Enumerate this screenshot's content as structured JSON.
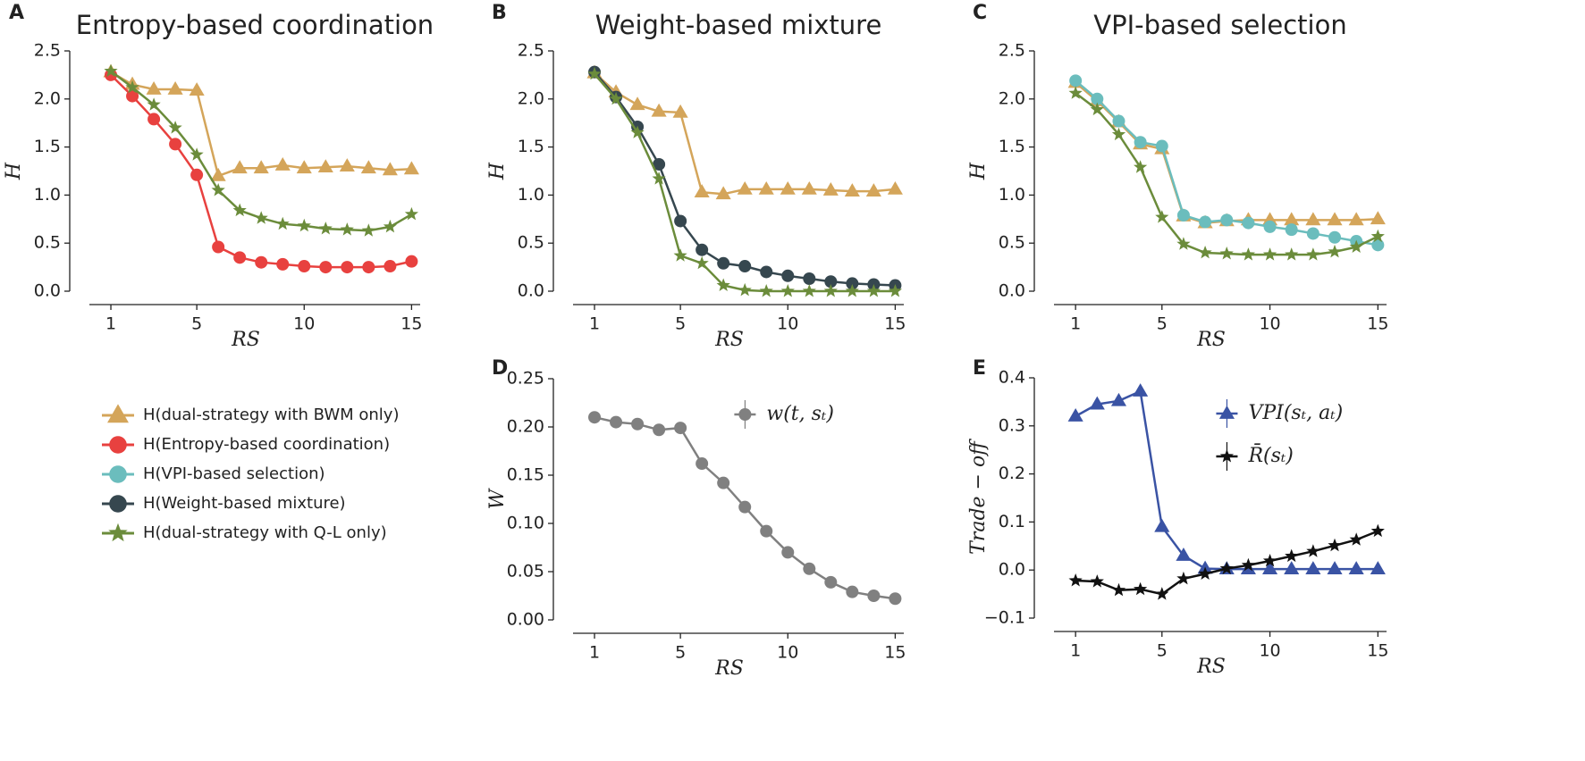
{
  "chart_data": [
    {
      "type": "line",
      "label": "A",
      "title": "Entropy-based coordination",
      "xlabel": "RS",
      "ylabel": "H",
      "x": [
        1,
        2,
        3,
        4,
        5,
        6,
        7,
        8,
        9,
        10,
        11,
        12,
        13,
        14,
        15
      ],
      "xlim": [
        0,
        15.4
      ],
      "xticks": [
        1,
        5,
        10,
        15
      ],
      "ylim": [
        0,
        2.5
      ],
      "yticks": [
        {
          "value": 0,
          "label": "0.0"
        },
        0.5,
        {
          "value": 1,
          "label": "1.0"
        },
        1.5,
        {
          "value": 2,
          "label": "2.0"
        },
        2.5
      ],
      "series": [
        {
          "name": "H(dual-strategy with BWM only)",
          "color": "#d4a55a",
          "marker": "triangle",
          "values": [
            2.28,
            2.15,
            2.1,
            2.1,
            2.09,
            1.2,
            1.28,
            1.28,
            1.31,
            1.28,
            1.29,
            1.3,
            1.28,
            1.26,
            1.27
          ]
        },
        {
          "name": "H(Entropy-based coordination)",
          "color": "#e8413f",
          "marker": "circle",
          "values": [
            2.25,
            2.03,
            1.79,
            1.53,
            1.21,
            0.46,
            0.35,
            0.3,
            0.28,
            0.26,
            0.25,
            0.25,
            0.25,
            0.26,
            0.31
          ]
        },
        {
          "name": "H(dual-strategy with Q-L only)",
          "color": "#6b8c3b",
          "marker": "star",
          "values": [
            2.29,
            2.12,
            1.94,
            1.7,
            1.42,
            1.05,
            0.84,
            0.76,
            0.7,
            0.68,
            0.65,
            0.64,
            0.63,
            0.67,
            0.8
          ]
        }
      ]
    },
    {
      "type": "line",
      "label": "B",
      "title": "Weight-based mixture",
      "xlabel": "RS",
      "ylabel": "H",
      "x": [
        1,
        2,
        3,
        4,
        5,
        6,
        7,
        8,
        9,
        10,
        11,
        12,
        13,
        14,
        15
      ],
      "xlim": [
        0,
        15.4
      ],
      "xticks": [
        1,
        5,
        10,
        15
      ],
      "ylim": [
        0,
        2.5
      ],
      "yticks": [
        {
          "value": 0,
          "label": "0.0"
        },
        0.5,
        {
          "value": 1,
          "label": "1.0"
        },
        1.5,
        {
          "value": 2,
          "label": "2.0"
        },
        2.5
      ],
      "series": [
        {
          "name": "H(dual-strategy with BWM only)",
          "color": "#d4a55a",
          "marker": "triangle",
          "values": [
            2.27,
            2.07,
            1.94,
            1.87,
            1.86,
            1.03,
            1.01,
            1.06,
            1.06,
            1.06,
            1.06,
            1.05,
            1.04,
            1.04,
            1.06
          ]
        },
        {
          "name": "H(Weight-based mixture)",
          "color": "#36474f",
          "marker": "circle",
          "values": [
            2.28,
            2.02,
            1.71,
            1.32,
            0.73,
            0.43,
            0.29,
            0.26,
            0.2,
            0.16,
            0.13,
            0.1,
            0.08,
            0.07,
            0.06
          ]
        },
        {
          "name": "H(dual-strategy with Q-L only)",
          "color": "#6b8c3b",
          "marker": "star",
          "values": [
            2.26,
            2.0,
            1.65,
            1.17,
            0.37,
            0.29,
            0.06,
            0.01,
            0,
            0,
            0,
            0,
            0,
            0,
            0
          ]
        }
      ]
    },
    {
      "type": "line",
      "label": "C",
      "title": "VPI-based selection",
      "xlabel": "RS",
      "ylabel": "H",
      "x": [
        1,
        2,
        3,
        4,
        5,
        6,
        7,
        8,
        9,
        10,
        11,
        12,
        13,
        14,
        15
      ],
      "xlim": [
        0,
        15.4
      ],
      "xticks": [
        1,
        5,
        10,
        15
      ],
      "ylim": [
        0,
        2.5
      ],
      "yticks": [
        {
          "value": 0,
          "label": "0.0"
        },
        0.5,
        {
          "value": 1,
          "label": "1.0"
        },
        1.5,
        {
          "value": 2,
          "label": "2.0"
        },
        2.5
      ],
      "series": [
        {
          "name": "H(dual-strategy with BWM only)",
          "color": "#d4a55a",
          "marker": "triangle",
          "values": [
            2.17,
            1.98,
            1.76,
            1.53,
            1.48,
            0.78,
            0.71,
            0.73,
            0.74,
            0.74,
            0.74,
            0.74,
            0.74,
            0.74,
            0.75
          ]
        },
        {
          "name": "H(VPI-based selection)",
          "color": "#6bbdbd",
          "marker": "circle",
          "values": [
            2.19,
            2.0,
            1.77,
            1.55,
            1.51,
            0.79,
            0.72,
            0.74,
            0.71,
            0.67,
            0.64,
            0.6,
            0.56,
            0.52,
            0.48
          ]
        },
        {
          "name": "H(dual-strategy with Q-L only)",
          "color": "#6b8c3b",
          "marker": "star",
          "values": [
            2.06,
            1.89,
            1.63,
            1.29,
            0.77,
            0.49,
            0.4,
            0.39,
            0.38,
            0.38,
            0.38,
            0.38,
            0.41,
            0.46,
            0.57
          ]
        }
      ]
    },
    {
      "type": "line",
      "label": "D",
      "xlabel": "RS",
      "ylabel": "W",
      "legend": "upper right",
      "x": [
        1,
        2,
        3,
        4,
        5,
        6,
        7,
        8,
        9,
        10,
        11,
        12,
        13,
        14,
        15
      ],
      "xlim": [
        0,
        15.4
      ],
      "xticks": [
        1,
        5,
        10,
        15
      ],
      "ylim": [
        0,
        0.25
      ],
      "yticks": [
        {
          "value": 0,
          "label": "0.00"
        },
        0.05,
        {
          "value": 0.1,
          "label": "0.10"
        },
        0.15,
        {
          "value": 0.2,
          "label": "0.20"
        },
        0.25
      ],
      "series": [
        {
          "name": "w(t, sₜ)",
          "color": "#808080",
          "marker": "circle",
          "values": [
            0.21,
            0.205,
            0.203,
            0.197,
            0.199,
            0.162,
            0.142,
            0.117,
            0.092,
            0.07,
            0.053,
            0.039,
            0.029,
            0.025,
            0.022
          ]
        }
      ]
    },
    {
      "type": "line",
      "label": "E",
      "xlabel": "RS",
      "ylabel": "Trade − off",
      "legend": "upper right",
      "x": [
        1,
        2,
        3,
        4,
        5,
        6,
        7,
        8,
        9,
        10,
        11,
        12,
        13,
        14,
        15
      ],
      "xlim": [
        0,
        15.4
      ],
      "xticks": [
        1,
        5,
        10,
        15
      ],
      "ylim": [
        -0.1,
        0.4
      ],
      "yticks": [
        {
          "value": -0.1,
          "label": "−0.1"
        },
        {
          "value": 0,
          "label": "0.0"
        },
        0.1,
        0.2,
        0.3,
        0.4
      ],
      "series": [
        {
          "name": "VPI(sₜ, aₜ)",
          "color": "#3a53a4",
          "marker": "triangle",
          "values": [
            0.32,
            0.345,
            0.352,
            0.372,
            0.09,
            0.03,
            0.003,
            0.002,
            0.002,
            0.002,
            0.002,
            0.002,
            0.002,
            0.002,
            0.002
          ]
        },
        {
          "name": "R̄(sₜ)",
          "color": "#111111",
          "marker": "star",
          "values": [
            -0.022,
            -0.024,
            -0.042,
            -0.04,
            -0.05,
            -0.018,
            -0.008,
            0.003,
            0.01,
            0.019,
            0.029,
            0.039,
            0.051,
            0.063,
            0.081
          ]
        }
      ]
    }
  ]
}
